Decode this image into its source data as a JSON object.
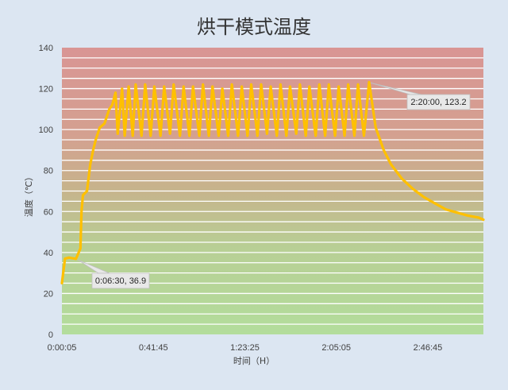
{
  "chart_data": {
    "type": "line",
    "title": "烘干模式温度",
    "xlabel": "时间（H）",
    "ylabel": "温度（℃）",
    "ylim": [
      0,
      140
    ],
    "y_ticks": [
      0,
      20,
      40,
      60,
      80,
      100,
      120,
      140
    ],
    "x_range_seconds": [
      5,
      11525
    ],
    "x_tick_labels": [
      "0:00:05",
      "0:41:45",
      "1:23:25",
      "2:05:05",
      "2:46:45"
    ],
    "x_tick_values_seconds": [
      5,
      2505,
      5005,
      7505,
      10005
    ],
    "background": "gradient red (top) to green (bottom) with horizontal white gridlines",
    "grid": true,
    "legend": "none",
    "colors": {
      "line": "#ffc000",
      "background_top": "#d99594",
      "background_bottom": "#b3dd9c",
      "page": "#dce6f2"
    },
    "series": [
      {
        "x": [
          "0:00:05",
          "0:01:30",
          "0:03:20",
          "0:06:30",
          "0:08:30",
          "0:09:00",
          "0:09:40",
          "0:11:30",
          "0:13:00",
          "0:14:20",
          "0:15:30",
          "0:17:20",
          "0:19:30",
          "0:21:40",
          "0:23:00",
          "0:24:30",
          "0:25:30",
          "0:27:30",
          "0:28:40",
          "0:30:30",
          "0:32:20",
          "0:33:40",
          "0:36:20",
          "0:38:00",
          "0:40:30",
          "0:42:10",
          "0:45:00",
          "0:46:40",
          "0:49:20",
          "0:51:00",
          "0:53:50",
          "0:55:30",
          "0:58:10",
          "0:59:50",
          "1:02:40",
          "1:04:20",
          "1:07:00",
          "1:08:40",
          "1:11:30",
          "1:13:10",
          "1:15:50",
          "1:17:30",
          "1:20:20",
          "1:22:00",
          "1:24:40",
          "1:26:20",
          "1:29:10",
          "1:30:50",
          "1:33:30",
          "1:35:10",
          "1:38:00",
          "1:39:40",
          "1:42:20",
          "1:44:00",
          "1:46:50",
          "1:48:30",
          "1:51:10",
          "1:52:50",
          "1:55:40",
          "1:57:20",
          "2:00:00",
          "2:01:40",
          "2:04:30",
          "2:06:10",
          "2:08:50",
          "2:10:30",
          "2:13:20",
          "2:15:00",
          "2:17:40",
          "2:20:00",
          "2:23:00",
          "2:26:40",
          "2:30:00",
          "2:35:00",
          "2:40:00",
          "2:45:00",
          "2:50:00",
          "2:55:00",
          "3:00:00",
          "3:05:00",
          "3:10:00",
          "3:12:05"
        ],
        "values": [
          25,
          37,
          37.5,
          36.9,
          42,
          60,
          68,
          70,
          83,
          90,
          95,
          101,
          103,
          110,
          112,
          118,
          98,
          120,
          97,
          121,
          97,
          122,
          97,
          122,
          97,
          121,
          97,
          121,
          98,
          122,
          97,
          121,
          97,
          121,
          97,
          122,
          97,
          121,
          97,
          120,
          97,
          122,
          97,
          121,
          97,
          122,
          97,
          122,
          98,
          121,
          97,
          122,
          97,
          121,
          98,
          122,
          97,
          121,
          97,
          122,
          97,
          122,
          97,
          121,
          97,
          122,
          97,
          122,
          97,
          123.2,
          101,
          90,
          83,
          76,
          71,
          67,
          64,
          61,
          59.5,
          58,
          57,
          56
        ]
      }
    ],
    "annotations": [
      {
        "label": "0:06:30, 36.9",
        "x": "0:06:30",
        "y": 36.9
      },
      {
        "label": "2:20:00, 123.2",
        "x": "2:20:00",
        "y": 123.2
      }
    ]
  }
}
